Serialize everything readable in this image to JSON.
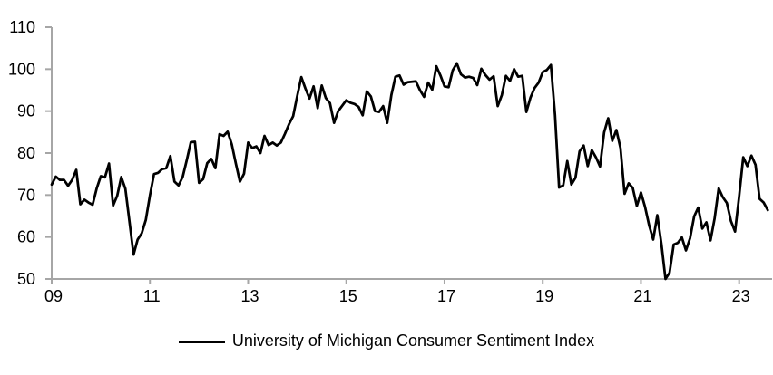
{
  "chart_data": {
    "type": "line",
    "title": "",
    "grid": false,
    "legend": {
      "label": "University of Michigan Consumer Sentiment Index",
      "position": "bottom-center",
      "swatch": "solid-line"
    },
    "colors": {
      "series": "#000000",
      "axis": "#a6a6a6",
      "text": "#000000",
      "background": "#ffffff"
    },
    "x_axis": {
      "tick_labels": [
        "09",
        "11",
        "13",
        "15",
        "17",
        "19",
        "21",
        "23"
      ],
      "tick_data_indices": [
        0,
        24,
        48,
        72,
        96,
        120,
        144,
        168
      ],
      "points_per_year": 12
    },
    "y_axis": {
      "ticks": [
        50,
        60,
        70,
        80,
        90,
        100,
        110
      ],
      "range": [
        50,
        110
      ]
    },
    "series": [
      {
        "name": "University of Michigan Consumer Sentiment Index",
        "color": "#000000",
        "values": [
          72.5,
          74.4,
          73.6,
          73.6,
          72.2,
          73.6,
          76.0,
          67.8,
          68.9,
          68.2,
          67.7,
          71.6,
          74.5,
          74.2,
          77.5,
          67.5,
          69.8,
          74.3,
          71.5,
          63.7,
          55.8,
          59.4,
          60.9,
          64.1,
          69.9,
          75.0,
          75.3,
          76.2,
          76.4,
          79.3,
          73.2,
          72.3,
          74.3,
          78.3,
          82.6,
          82.7,
          72.9,
          73.8,
          77.6,
          78.6,
          76.4,
          84.5,
          84.1,
          85.1,
          82.1,
          77.5,
          73.2,
          75.1,
          82.5,
          81.2,
          81.6,
          80.0,
          84.1,
          81.9,
          82.5,
          81.8,
          82.5,
          84.6,
          86.9,
          88.8,
          93.6,
          98.1,
          95.4,
          93.0,
          95.9,
          90.7,
          96.1,
          93.1,
          91.9,
          87.2,
          90.0,
          91.3,
          92.6,
          92.0,
          91.7,
          91.0,
          89.0,
          94.7,
          93.5,
          90.0,
          89.8,
          91.2,
          87.2,
          93.8,
          98.2,
          98.5,
          96.3,
          96.9,
          97.0,
          97.1,
          95.0,
          93.4,
          96.8,
          95.1,
          100.7,
          98.5,
          95.9,
          95.7,
          99.7,
          101.4,
          98.8,
          98.0,
          98.2,
          97.9,
          96.2,
          100.1,
          98.6,
          97.5,
          98.3,
          91.2,
          93.8,
          98.4,
          97.2,
          100.0,
          98.2,
          98.4,
          89.8,
          93.2,
          95.5,
          96.8,
          99.3,
          99.8,
          101.0,
          89.1,
          71.8,
          72.3,
          78.1,
          72.5,
          74.1,
          80.4,
          81.8,
          76.9,
          80.7,
          79.0,
          76.8,
          84.9,
          88.3,
          82.9,
          85.5,
          81.2,
          70.3,
          72.8,
          71.7,
          67.4,
          70.6,
          67.2,
          62.8,
          59.4,
          65.2,
          58.4,
          50.0,
          51.5,
          58.2,
          58.6,
          59.9,
          56.8,
          59.7,
          64.9,
          67.0,
          62.0,
          63.5,
          59.2,
          64.4,
          71.6,
          69.5,
          68.1,
          63.8,
          61.3,
          69.7,
          79.0,
          76.9,
          79.4,
          77.2,
          69.1,
          68.2,
          66.4
        ]
      }
    ]
  }
}
